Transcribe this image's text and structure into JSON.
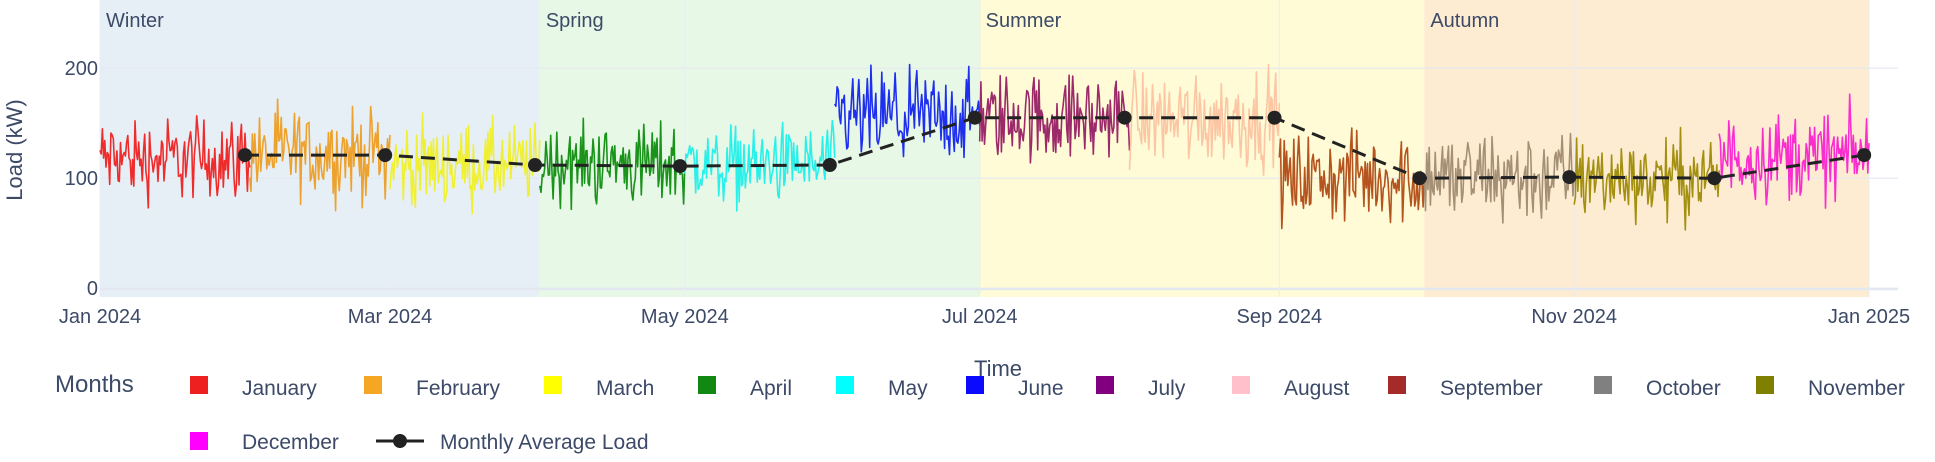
{
  "chart_data": {
    "type": "line",
    "title": "",
    "xlabel": "Time",
    "ylabel": "Load (kW)",
    "ylim": [
      -8,
      262
    ],
    "yticks": [
      0,
      100,
      200
    ],
    "x_ticks": [
      "Jan 2024",
      "Mar 2024",
      "May 2024",
      "Jul 2024",
      "Sep 2024",
      "Nov 2024",
      "Jan 2025"
    ],
    "x_range": [
      "2024-01-01",
      "2025-01-07"
    ],
    "grid": true,
    "legend": {
      "title": "Months",
      "placement": "bottom"
    },
    "seasons": [
      {
        "name": "Winter",
        "start": "2024-01-01",
        "end": "2024-03-31",
        "color": "#dfe9f3"
      },
      {
        "name": "Spring",
        "start": "2024-04-01",
        "end": "2024-06-30",
        "color": "#dff5df"
      },
      {
        "name": "Summer",
        "start": "2024-07-01",
        "end": "2024-09-30",
        "color": "#fdf9c8"
      },
      {
        "name": "Autumn",
        "start": "2024-10-01",
        "end": "2024-12-31",
        "color": "#fde5c3"
      }
    ],
    "series": [
      {
        "name": "January",
        "color": "#ef2020",
        "line_color": "#ef2c2c",
        "start": "2024-01-01",
        "end": "2024-01-31",
        "center": 118,
        "spread": 42
      },
      {
        "name": "February",
        "color": "#f5a623",
        "line_color": "#eda22e",
        "start": "2024-02-01",
        "end": "2024-02-29",
        "center": 122,
        "spread": 45
      },
      {
        "name": "March",
        "color": "#ffff00",
        "line_color": "#f0f033",
        "start": "2024-03-01",
        "end": "2024-03-31",
        "center": 112,
        "spread": 42
      },
      {
        "name": "April",
        "color": "#118811",
        "line_color": "#1a931a",
        "start": "2024-04-01",
        "end": "2024-04-30",
        "center": 113,
        "spread": 42
      },
      {
        "name": "May",
        "color": "#00ffff",
        "line_color": "#2af0ea",
        "start": "2024-05-01",
        "end": "2024-05-31",
        "center": 112,
        "spread": 40
      },
      {
        "name": "June",
        "color": "#0a0aff",
        "line_color": "#1f2fee",
        "start": "2024-06-01",
        "end": "2024-06-30",
        "center": 155,
        "spread": 48
      },
      {
        "name": "July",
        "color": "#800080",
        "line_color": "#9c2a6a",
        "start": "2024-07-01",
        "end": "2024-07-31",
        "center": 155,
        "spread": 45
      },
      {
        "name": "August",
        "color": "#ffc0cb",
        "line_color": "#fcc6a4",
        "start": "2024-08-01",
        "end": "2024-08-31",
        "center": 155,
        "spread": 48
      },
      {
        "name": "September",
        "color": "#a52a2a",
        "line_color": "#b5541e",
        "start": "2024-09-01",
        "end": "2024-09-30",
        "center": 100,
        "spread": 45
      },
      {
        "name": "October",
        "color": "#808080",
        "line_color": "#a59075",
        "start": "2024-10-01",
        "end": "2024-10-31",
        "center": 101,
        "spread": 48
      },
      {
        "name": "November",
        "color": "#808000",
        "line_color": "#a39010",
        "start": "2024-11-01",
        "end": "2024-11-30",
        "center": 100,
        "spread": 42
      },
      {
        "name": "December",
        "color": "#ff00ff",
        "line_color": "#fa2ecf",
        "start": "2024-12-01",
        "end": "2024-12-31",
        "center": 120,
        "spread": 45
      }
    ],
    "monthly_average": {
      "name": "Monthly Average Load",
      "color": "#222222",
      "points": [
        {
          "x": "2024-01-31",
          "y": 121
        },
        {
          "x": "2024-02-29",
          "y": 121
        },
        {
          "x": "2024-03-31",
          "y": 112
        },
        {
          "x": "2024-04-30",
          "y": 111
        },
        {
          "x": "2024-05-31",
          "y": 112
        },
        {
          "x": "2024-06-30",
          "y": 155
        },
        {
          "x": "2024-07-31",
          "y": 155
        },
        {
          "x": "2024-08-31",
          "y": 155
        },
        {
          "x": "2024-09-30",
          "y": 100
        },
        {
          "x": "2024-10-31",
          "y": 101
        },
        {
          "x": "2024-11-30",
          "y": 100
        },
        {
          "x": "2024-12-31",
          "y": 121
        }
      ]
    }
  }
}
